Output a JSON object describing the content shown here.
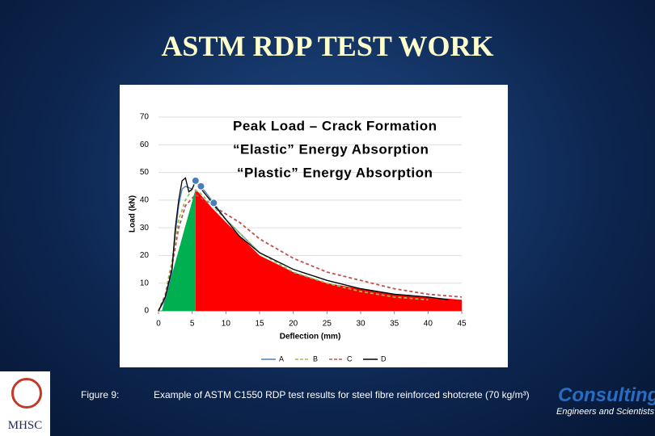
{
  "slide": {
    "title": "ASTM RDP TEST WORK",
    "figure_label": "Figure 9:",
    "caption": "Example of ASTM C1550 RDP test results for steel fibre reinforced shotcrete (70 kg/m³)",
    "logo_left": "MHSC",
    "logo_right": "Consulting",
    "logo_right_sub": "Engineers and Scientists"
  },
  "chart_data": {
    "type": "line",
    "xlabel": "Deflection (mm)",
    "ylabel": "Load (kN)",
    "xlim": [
      0,
      45
    ],
    "xticks": [
      0,
      5,
      10,
      15,
      20,
      25,
      30,
      35,
      40,
      45
    ],
    "ylim": [
      0,
      70
    ],
    "yticks": [
      0,
      10,
      20,
      30,
      40,
      50,
      60,
      70
    ],
    "annotations": [
      {
        "text": "Peak Load – Crack Formation",
        "color": "#1f3fc0"
      },
      {
        "text": "“Elastic” Energy Absorption",
        "color": "#00b050"
      },
      {
        "text": "“Plastic” Energy Absorption",
        "color": "#ff0000"
      }
    ],
    "areas": [
      {
        "color": "#00b050",
        "x": [
          0.5,
          5.5
        ],
        "values": [
          0,
          44
        ]
      },
      {
        "color": "#ff0000",
        "x": [
          5.5,
          8,
          10,
          15,
          20,
          25,
          30,
          35,
          40,
          45
        ],
        "values": [
          44,
          37,
          32,
          20,
          14,
          10,
          8,
          6,
          5,
          4
        ]
      }
    ],
    "markers": {
      "color": "#4a7ebb",
      "x": [
        5.5,
        6.3,
        8.2
      ],
      "values": [
        47,
        45,
        39
      ]
    },
    "series": [
      {
        "name": "A",
        "color": "#4a7ebb",
        "dash": false,
        "x": [
          0,
          1,
          2,
          2.5,
          3,
          3.5,
          4,
          5,
          5.5,
          6.3,
          8.2,
          10,
          15,
          20,
          25,
          30,
          35,
          40,
          43
        ],
        "values": [
          0,
          4,
          14,
          28,
          38,
          44,
          45,
          44,
          47,
          45,
          39,
          33,
          21,
          15,
          11,
          8,
          6,
          5,
          4
        ]
      },
      {
        "name": "B",
        "color": "#9bbb59",
        "dash": true,
        "x": [
          0,
          1,
          2,
          3,
          4,
          5,
          6,
          8,
          10,
          15,
          20,
          25,
          30,
          35,
          40
        ],
        "values": [
          0,
          6,
          18,
          33,
          40,
          44,
          43,
          38,
          33,
          21,
          14,
          10,
          7,
          5,
          4
        ]
      },
      {
        "name": "C",
        "color": "#c0504d",
        "dash": true,
        "x": [
          0,
          1,
          2,
          3,
          4,
          5.5,
          8,
          10,
          12,
          15,
          20,
          25,
          30,
          35,
          40,
          45
        ],
        "values": [
          0,
          5,
          16,
          30,
          38,
          42,
          38,
          35,
          32,
          26,
          19,
          14,
          11,
          8,
          6,
          5
        ]
      },
      {
        "name": "D",
        "color": "#000000",
        "dash": false,
        "x": [
          0,
          1,
          2,
          2.5,
          3,
          3.5,
          4,
          4.5,
          5,
          5.5,
          6,
          7,
          8,
          10,
          12,
          15,
          20,
          25,
          30,
          35,
          40,
          43
        ],
        "values": [
          0,
          5,
          15,
          30,
          40,
          47,
          48,
          43,
          44,
          47,
          45,
          42,
          39,
          33,
          27,
          21,
          15,
          11,
          8,
          6,
          5,
          4
        ]
      }
    ]
  }
}
